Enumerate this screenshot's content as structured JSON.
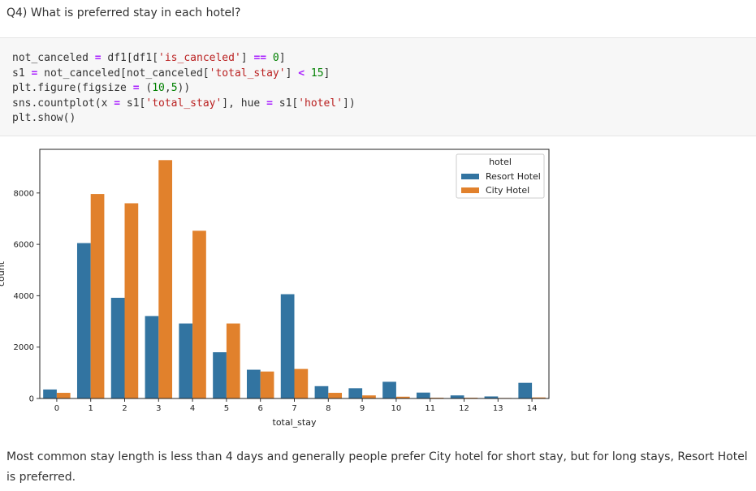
{
  "question": "Q4) What is preferred stay in each hotel?",
  "code_lines": [
    "not_canceled = df1[df1['is_canceled'] == 0]",
    "s1 = not_canceled[not_canceled['total_stay'] < 15]",
    "plt.figure(figsize = (10,5))",
    "sns.countplot(x = s1['total_stay'], hue = s1['hotel'])",
    "plt.show()"
  ],
  "chart_data": {
    "type": "bar",
    "xlabel": "total_stay",
    "ylabel": "count",
    "ylim": [
      0,
      9700
    ],
    "yticks": [
      0,
      2000,
      4000,
      6000,
      8000
    ],
    "categories": [
      "0",
      "1",
      "2",
      "3",
      "4",
      "5",
      "6",
      "7",
      "8",
      "9",
      "10",
      "11",
      "12",
      "13",
      "14"
    ],
    "legend": {
      "title": "hotel",
      "placement": "top-right"
    },
    "series": [
      {
        "name": "Resort Hotel",
        "color": "#3274a1",
        "values": [
          350,
          6050,
          3920,
          3210,
          2920,
          1800,
          1120,
          4060,
          480,
          400,
          650,
          230,
          120,
          80,
          610
        ]
      },
      {
        "name": "City Hotel",
        "color": "#e1812c",
        "values": [
          220,
          7960,
          7600,
          9280,
          6530,
          2920,
          1050,
          1150,
          220,
          120,
          70,
          30,
          30,
          20,
          40
        ]
      }
    ]
  },
  "answer": "Most common stay length is less than 4 days and generally people prefer City hotel for short stay, but for long stays, Resort Hotel is preferred."
}
